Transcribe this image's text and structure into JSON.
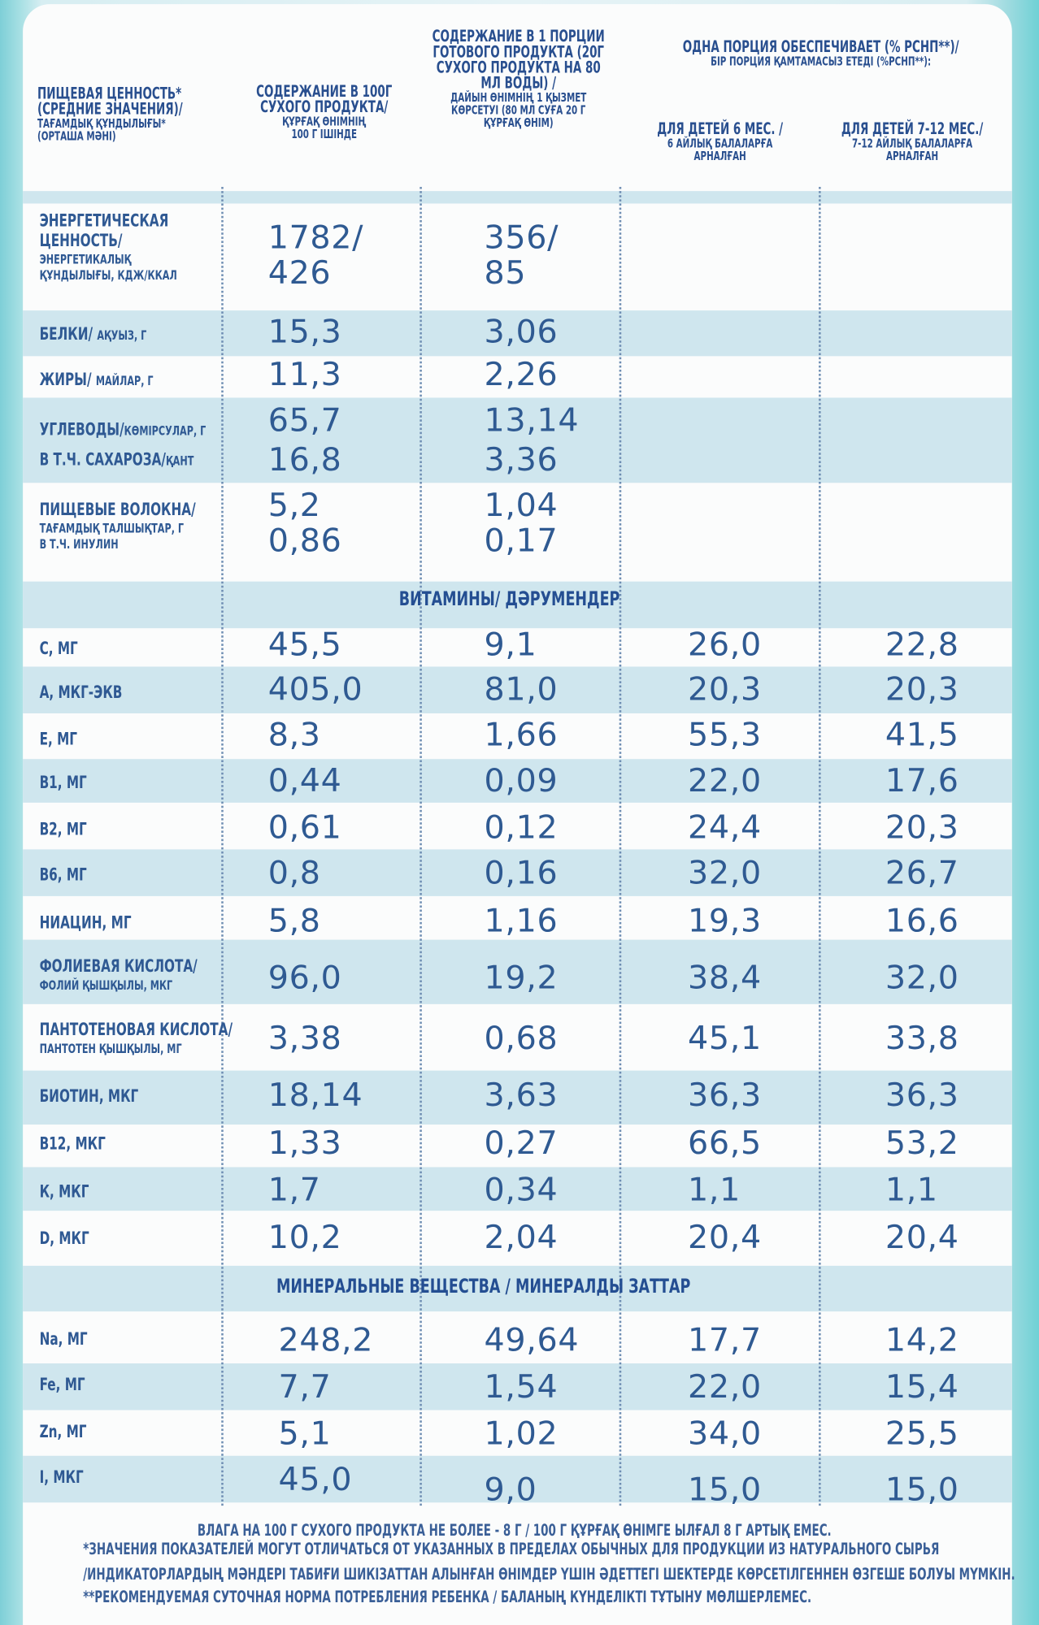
{
  "header": {
    "col1": [
      "ПИЩЕВАЯ ЦЕННОСТЬ*",
      "(СРЕДНИЕ ЗНАЧЕНИЯ)/"
    ],
    "col1_kz": [
      "ТАҒАМДЫҚ ҚҰНДЫЛЫҒЫ*",
      "(ОРТАША МӘНІ)"
    ],
    "col2": [
      "СОДЕРЖАНИЕ В 100Г",
      "СУХОГО ПРОДУКТА/"
    ],
    "col2_kz": [
      "ҚҰРҒАҚ ӨНІМНІҢ",
      "100 Г ІШІНДЕ"
    ],
    "col3": [
      "СОДЕРЖАНИЕ В 1 ПОРЦИИ",
      "ГОТОВОГО ПРОДУКТА (20Г",
      "СУХОГО ПРОДУКТА НА 80",
      "МЛ ВОДЫ) /"
    ],
    "col3_kz": [
      "ДАЙЫН ӨНІМНІҢ 1 ҚЫЗМЕТ",
      "КӨРСЕТУІ  (80 МЛ СУҒА 20 Г",
      "ҚҰРҒАҚ ӨНІМ)"
    ],
    "portion": [
      "ОДНА ПОРЦИЯ ОБЕСПЕЧИВАЕТ (% РСНП**)/",
      "БІР ПОРЦИЯ ҚАМТАМАСЫЗ ЕТЕДІ (%РСНП**):"
    ],
    "col4": [
      "ДЛЯ ДЕТЕЙ 6 МЕС. /"
    ],
    "col4_kz": [
      "6 АЙЛЫҚ  БАЛАЛАРҒА",
      "АРНАЛҒАН"
    ],
    "col5": [
      "ДЛЯ ДЕТЕЙ 7-12 МЕС./"
    ],
    "col5_kz": [
      "7-12 АЙЛЫҚ  БАЛАЛАРҒА",
      "АРНАЛҒАН"
    ]
  },
  "rows": [
    {
      "label": "ЭНЕРГЕТИЧЕСКАЯ",
      "label2": "ЦЕННОСТЬ/",
      "small": [
        "ЭНЕРГЕТИКАЛЫҚ",
        "ҚҰНДЫЛЫҒЫ, КДЖ/ККАЛ"
      ],
      "v100": "1782/",
      "v100b": "426",
      "vport": "356/",
      "vportb": "85",
      "p6": "",
      "p712": ""
    },
    {
      "label": "БЕЛКИ/",
      "labelsm": "АҚУЫЗ, Г",
      "v100": "15,3",
      "vport": "3,06",
      "p6": "",
      "p712": ""
    },
    {
      "label": "ЖИРЫ/",
      "labelsm": "МАЙЛАР, Г",
      "v100": "11,3",
      "vport": "2,26",
      "p6": "",
      "p712": ""
    },
    {
      "label": "УГЛЕВОДЫ/",
      "labelsm": "КӨМІРСУЛАР, Г",
      "v100": "65,7",
      "vport": "13,14",
      "p6": "",
      "p712": ""
    },
    {
      "label": "В Т.Ч. САХАРОЗА/",
      "labelsm": "ҚАНТ",
      "v100": "16,8",
      "vport": "3,36",
      "p6": "",
      "p712": ""
    },
    {
      "label": "ПИЩЕВЫЕ ВОЛОКНА/",
      "small": [
        "ТАҒАМДЫҚ ТАЛШЫҚТАР, Г",
        "В Т.Ч. ИНУЛИН"
      ],
      "v100": "5,2",
      "v100b": "0,86",
      "vport": "1,04",
      "vportb": "0,17",
      "p6": "",
      "p712": ""
    }
  ],
  "vitamins_title": "ВИТАМИНЫ/ ДӘРУМЕНДЕР",
  "vitamins": [
    {
      "label": "С, МГ",
      "v100": "45,5",
      "vport": "9,1",
      "p6": "26,0",
      "p712": "22,8"
    },
    {
      "label": "А, МКГ-ЭКВ",
      "v100": "405,0",
      "vport": "81,0",
      "p6": "20,3",
      "p712": "20,3"
    },
    {
      "label": "Е, МГ",
      "v100": "8,3",
      "vport": "1,66",
      "p6": "55,3",
      "p712": "41,5"
    },
    {
      "label": "В1, МГ",
      "v100": "0,44",
      "vport": "0,09",
      "p6": "22,0",
      "p712": "17,6"
    },
    {
      "label": "В2, МГ",
      "v100": "0,61",
      "vport": "0,12",
      "p6": "24,4",
      "p712": "20,3"
    },
    {
      "label": "В6, МГ",
      "v100": "0,8",
      "vport": "0,16",
      "p6": "32,0",
      "p712": "26,7"
    },
    {
      "label": "НИАЦИН, МГ",
      "v100": "5,8",
      "vport": "1,16",
      "p6": "19,3",
      "p712": "16,6"
    },
    {
      "label": "ФОЛИЕВАЯ КИСЛОТА/",
      "labelsm": "ФОЛИЙ ҚЫШҚЫЛЫ, МКГ",
      "v100": "96,0",
      "vport": "19,2",
      "p6": "38,4",
      "p712": "32,0"
    },
    {
      "label": "ПАНТОТЕНОВАЯ КИСЛОТА/",
      "labelsm": "ПАНТОТЕН ҚЫШҚЫЛЫ, МГ",
      "v100": "3,38",
      "vport": "0,68",
      "p6": "45,1",
      "p712": "33,8"
    },
    {
      "label": "БИОТИН, МКГ",
      "v100": "18,14",
      "vport": "3,63",
      "p6": "36,3",
      "p712": "36,3"
    },
    {
      "label": "В12, МКГ",
      "v100": "1,33",
      "vport": "0,27",
      "p6": "66,5",
      "p712": "53,2"
    },
    {
      "label": "К, МКГ",
      "v100": "1,7",
      "vport": "0,34",
      "p6": "1,1",
      "p712": "1,1"
    },
    {
      "label": "D, МКГ",
      "v100": "10,2",
      "vport": "2,04",
      "p6": "20,4",
      "p712": "20,4"
    }
  ],
  "minerals_title": "МИНЕРАЛЬНЫЕ ВЕЩЕСТВА / МИНЕРАЛДЫ ЗАТТАР",
  "minerals": [
    {
      "label": "Na, МГ",
      "v100": "248,2",
      "vport": "49,64",
      "p6": "17,7",
      "p712": "14,2"
    },
    {
      "label": "Fe, МГ",
      "v100": "7,7",
      "vport": "1,54",
      "p6": "22,0",
      "p712": "15,4"
    },
    {
      "label": "Zn, МГ",
      "v100": "5,1",
      "vport": "1,02",
      "p6": "34,0",
      "p712": "25,5"
    },
    {
      "label": "I, МКГ",
      "v100": "45,0",
      "vport": "9,0",
      "p6": "15,0",
      "p712": "15,0"
    }
  ],
  "footnotes": [
    "ВЛАГА НА 100 Г СУХОГО ПРОДУКТА НЕ БОЛЕЕ - 8 Г / 100 Г ҚҰРҒАҚ ӨНІМГЕ ЫЛҒАЛ 8 Г АРТЫҚ ЕМЕС.",
    "*ЗНАЧЕНИЯ ПОКАЗАТЕЛЕЙ МОГУТ ОТЛИЧАТЬСЯ ОТ УКАЗАННЫХ В ПРЕДЕЛАХ ОБЫЧНЫХ ДЛЯ ПРОДУКЦИИ ИЗ НАТУРАЛЬНОГО СЫРЬЯ",
    "/ИНДИКАТОРЛАРДЫҢ МӘНДЕРІ ТАБИҒИ ШИКІЗАТТАН АЛЫНҒАН ӨНІМДЕР ҮШІН ӘДЕТТЕГІ ШЕКТЕРДЕ КӨРСЕТІЛГЕННЕН ӨЗГЕШЕ БОЛУЫ МҮМКІН.",
    "**РЕКОМЕНДУЕМАЯ СУТОЧНАЯ НОРМА ПОТРЕБЛЕНИЯ РЕБЕНКА / БАЛАНЫҢ КҮНДЕЛІКТІ ТҰТЫНУ МӨЛШЕРЛЕМЕС."
  ]
}
